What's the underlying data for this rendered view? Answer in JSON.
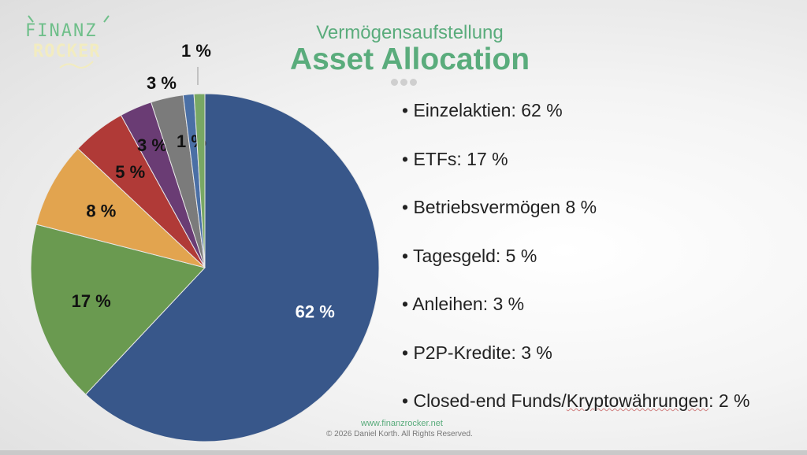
{
  "logo_text": "FINANZ ROCKER",
  "subtitle": "Vermögensaufstellung",
  "title": "Asset Allocation",
  "legend_items": [
    "Einzelaktien: 62 %",
    "ETFs: 17 %",
    "Betriebsvermögen 8 %",
    "Tagesgeld: 5 %",
    "Anleihen: 3 %",
    "P2P-Kredite: 3 %",
    "Closed-end Funds/Kryptowährungen: 2 %"
  ],
  "footer": {
    "url": "www.finanzrocker.net",
    "copyright": "© 2026 Daniel Korth. All Rights Reserved."
  },
  "chart_data": {
    "type": "pie",
    "start": "top",
    "direction": "clockwise",
    "values": [
      62,
      17,
      8,
      5,
      3,
      3,
      1,
      1
    ],
    "labels": [
      "62 %",
      "17 %",
      "8 %",
      "5 %",
      "3 %",
      "3 %",
      "1 %",
      "1 %"
    ],
    "colors": [
      "#38578a",
      "#6a9a50",
      "#e2a44f",
      "#b03a37",
      "#6a3c74",
      "#7b7b7b",
      "#4a6fa5",
      "#79a864"
    ],
    "label_colors": [
      "#ffffff",
      "#111111",
      "#111111",
      "#111111",
      "#111111",
      "#111111",
      "#111111",
      "#111111"
    ]
  }
}
